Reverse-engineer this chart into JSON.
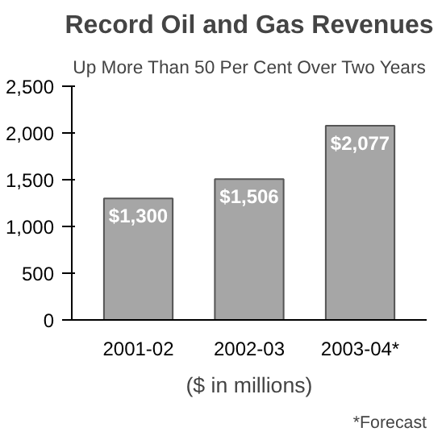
{
  "chart_data": {
    "type": "bar",
    "title": "Record Oil and Gas Revenues",
    "subtitle": "Up More Than 50 Per Cent Over Two Years",
    "categories": [
      "2001-02",
      "2002-03",
      "2003-04*"
    ],
    "values": [
      1300,
      1506,
      2077
    ],
    "value_labels": [
      "$1,300",
      "$1,506",
      "$2,077"
    ],
    "color": "#a6a6a6",
    "xlabel": "($ in millions)",
    "annotations": [
      "*Forecast"
    ],
    "ylim": [
      0,
      2500
    ],
    "yticks": [
      0,
      {
        "value": 500,
        "label": "500"
      },
      {
        "value": 1000,
        "label": "1,000"
      },
      {
        "value": 1500,
        "label": "1,500"
      },
      {
        "value": 2000,
        "label": "2,000"
      },
      {
        "value": 2500,
        "label": "2,500"
      }
    ],
    "grid": false
  }
}
